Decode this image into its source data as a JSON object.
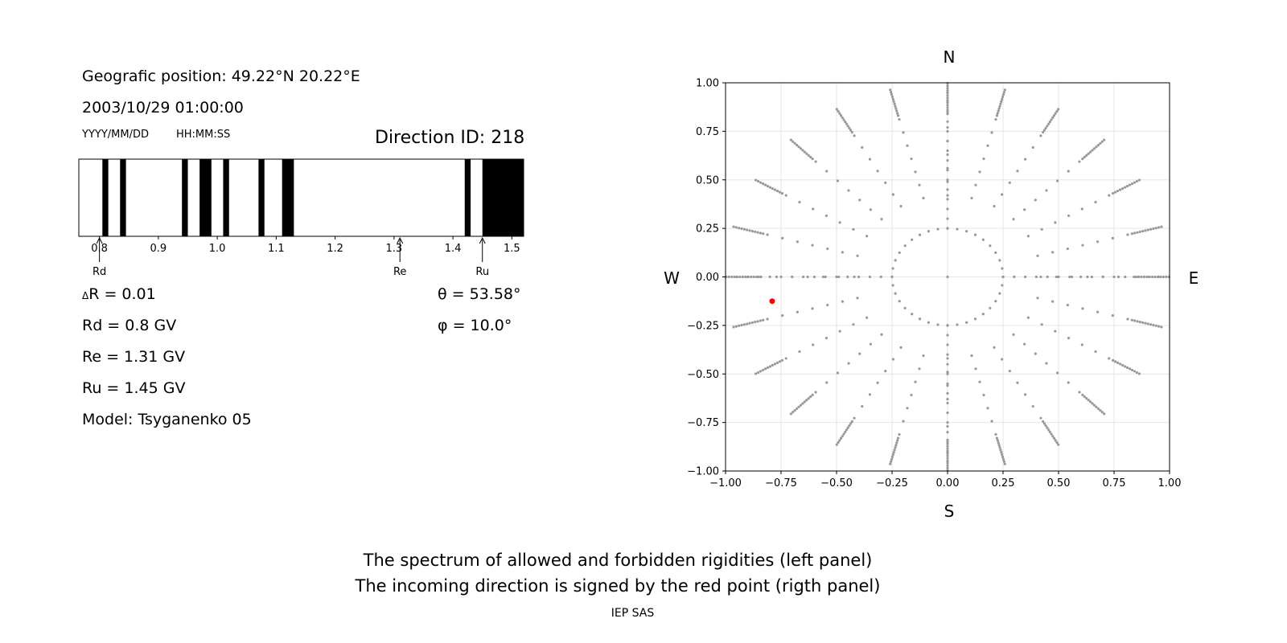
{
  "left": {
    "geo_position": "Geografic position: 49.22°N 20.22°E",
    "datetime": "2003/10/29 01:00:00",
    "date_format": "YYYY/MM/DD",
    "time_format": "HH:MM:SS",
    "direction_id": "Direction ID: 218",
    "delta_r": "R = 0.01",
    "delta_symbol": "Δ",
    "rd": "Rd = 0.8 GV",
    "re": "Re = 1.31 GV",
    "ru": "Ru = 1.45 GV",
    "model": "Model: Tsyganenko 05",
    "theta": "θ = 53.58°",
    "phi": "φ = 10.0°"
  },
  "footer": {
    "line1": "The spectrum of allowed and forbidden rigidities (left panel)",
    "line2": "The incoming direction is signed by the red point (rigth panel)",
    "credit": "IEP SAS"
  },
  "chart_data": [
    {
      "type": "bar",
      "title": "",
      "xlim": [
        0.765,
        1.52
      ],
      "ticks": [
        0.8,
        0.9,
        1.0,
        1.1,
        1.2,
        1.3,
        1.4,
        1.5
      ],
      "tick_labels": [
        "0.8",
        "0.9",
        "1.0",
        "1.1",
        "1.2",
        "1.3",
        "1.4",
        "1.5"
      ],
      "forbidden_bands": [
        [
          0.805,
          0.815
        ],
        [
          0.835,
          0.845
        ],
        [
          0.94,
          0.95
        ],
        [
          0.97,
          0.99
        ],
        [
          1.01,
          1.02
        ],
        [
          1.07,
          1.08
        ],
        [
          1.11,
          1.13
        ],
        [
          1.42,
          1.43
        ],
        [
          1.45,
          1.52
        ]
      ],
      "markers": [
        {
          "label": "Rd",
          "value": 0.8
        },
        {
          "label": "Re",
          "value": 1.31
        },
        {
          "label": "Ru",
          "value": 1.45
        }
      ],
      "colors": {
        "forbidden": "#000000",
        "allowed": "#ffffff"
      }
    },
    {
      "type": "scatter",
      "xlim": [
        -1.0,
        1.0
      ],
      "ylim": [
        -1.0,
        1.0
      ],
      "xticks": [
        -1.0,
        -0.75,
        -0.5,
        -0.25,
        0.0,
        0.25,
        0.5,
        0.75,
        1.0
      ],
      "xtick_labels": [
        "−1.00",
        "−0.75",
        "−0.50",
        "−0.25",
        "0.00",
        "0.25",
        "0.50",
        "0.75",
        "1.00"
      ],
      "yticks": [
        1.0,
        0.75,
        0.5,
        0.25,
        0.0,
        -0.25,
        -0.5,
        -0.75,
        -1.0
      ],
      "ytick_labels": [
        "1.00",
        "0.75",
        "0.50",
        "0.25",
        "0.00",
        "−0.25",
        "−0.50",
        "−0.75",
        "−1.00"
      ],
      "compass": {
        "north": "N",
        "south": "S",
        "west": "W",
        "east": "E"
      },
      "grid": true,
      "grid_rings": {
        "radii": [
          0.25,
          0.42,
          0.57,
          0.69,
          0.79,
          0.86,
          0.92,
          0.96,
          0.985,
          1.0
        ],
        "per_ring": [
          24,
          24,
          24,
          24,
          24,
          24,
          24,
          24,
          24,
          24
        ],
        "dense_radii_from": 0.86
      },
      "highlight_point": {
        "x": -0.79,
        "y": -0.125
      },
      "colors": {
        "points": "#999999",
        "highlight": "#ff0000"
      }
    }
  ]
}
